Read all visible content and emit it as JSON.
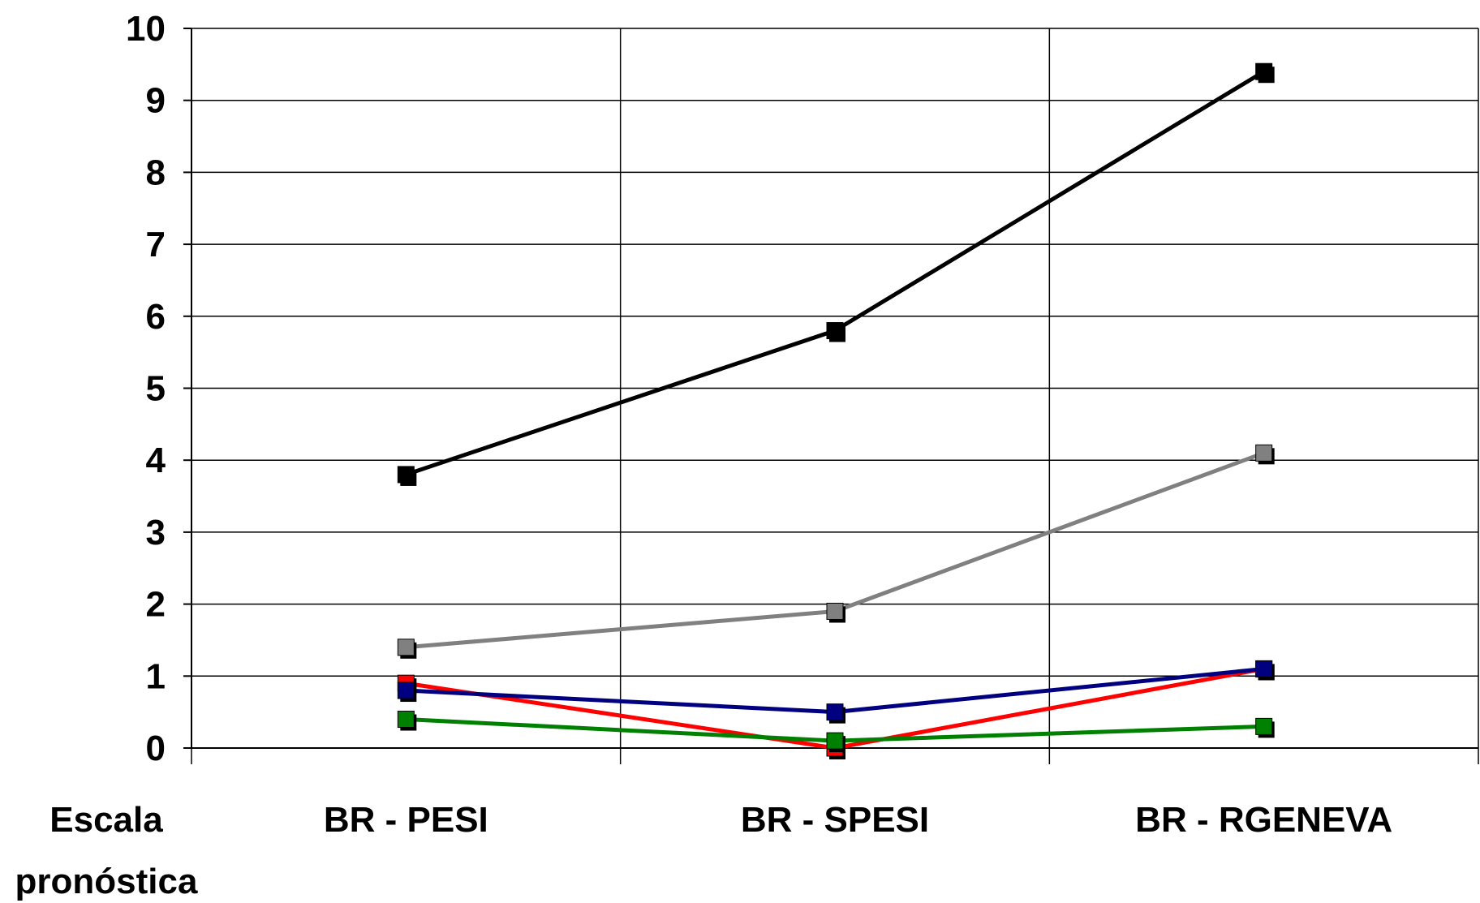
{
  "chart_data": {
    "type": "line",
    "xlabel": "Escala pronóstica",
    "xlabel_lines": [
      "Escala",
      "pronóstica"
    ],
    "categories": [
      "BR - PESI",
      "BR - SPESI",
      "BR - RGENEVA"
    ],
    "ylim": [
      0,
      10
    ],
    "yticks": [
      "0",
      "1",
      "2",
      "3",
      "4",
      "5",
      "6",
      "7",
      "8",
      "9",
      "10"
    ],
    "grid": true,
    "legend": "none",
    "series": [
      {
        "color": "#000000",
        "values": [
          3.8,
          5.8,
          9.4
        ]
      },
      {
        "color": "#808080",
        "values": [
          1.4,
          1.9,
          4.1
        ]
      },
      {
        "color": "#ff0000",
        "values": [
          0.9,
          0.0,
          1.1
        ]
      },
      {
        "color": "#000080",
        "values": [
          0.8,
          0.5,
          1.1
        ]
      },
      {
        "color": "#008000",
        "values": [
          0.4,
          0.1,
          0.3
        ]
      }
    ]
  }
}
